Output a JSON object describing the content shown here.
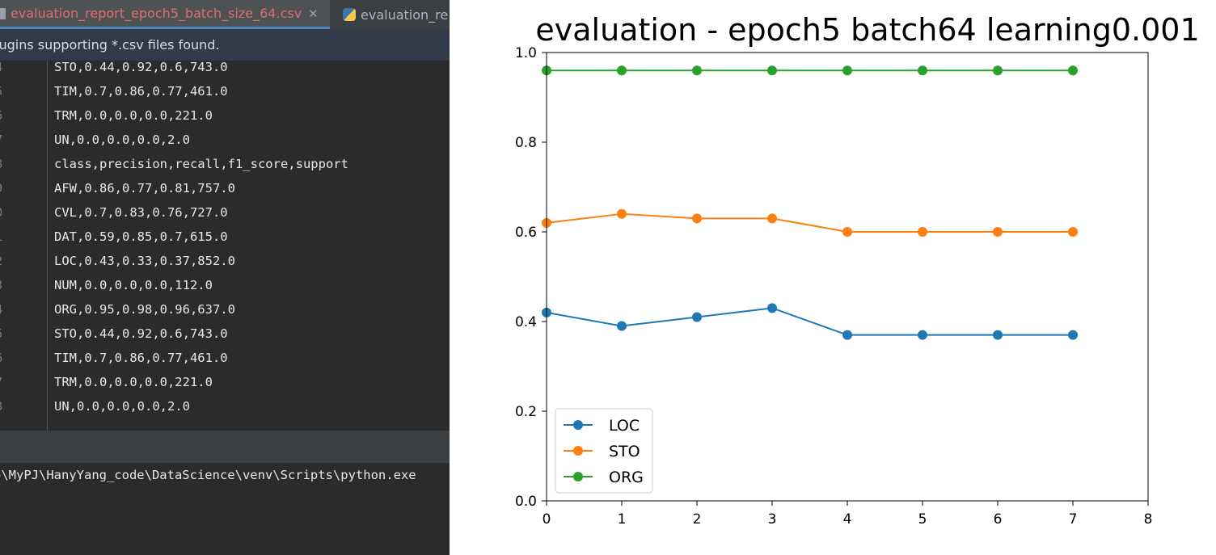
{
  "ide": {
    "tabs": [
      {
        "label": "evaluation_report_epoch5_batch_size_64.csv",
        "active": true,
        "icon": "csv-file-icon"
      },
      {
        "label": "evaluation_re",
        "active": false,
        "icon": "python-file-icon"
      }
    ],
    "notification": "lugins supporting *.csv files found.",
    "code_lines": [
      {
        "ln": "4",
        "text": "STO,0.44,0.92,0.6,743.0"
      },
      {
        "ln": "5",
        "text": "TIM,0.7,0.86,0.77,461.0"
      },
      {
        "ln": "6",
        "text": "TRM,0.0,0.0,0.0,221.0"
      },
      {
        "ln": "7",
        "text": "UN,0.0,0.0,0.0,2.0"
      },
      {
        "ln": "8",
        "text": "class,precision,recall,f1_score,support"
      },
      {
        "ln": "9",
        "text": "AFW,0.86,0.77,0.81,757.0"
      },
      {
        "ln": "0",
        "text": "CVL,0.7,0.83,0.76,727.0"
      },
      {
        "ln": "1",
        "text": "DAT,0.59,0.85,0.7,615.0"
      },
      {
        "ln": "2",
        "text": "LOC,0.43,0.33,0.37,852.0"
      },
      {
        "ln": "3",
        "text": "NUM,0.0,0.0,0.0,112.0"
      },
      {
        "ln": "4",
        "text": "ORG,0.95,0.98,0.96,637.0"
      },
      {
        "ln": "5",
        "text": "STO,0.44,0.92,0.6,743.0"
      },
      {
        "ln": "6",
        "text": "TIM,0.7,0.86,0.77,461.0"
      },
      {
        "ln": "7",
        "text": "TRM,0.0,0.0,0.0,221.0"
      },
      {
        "ln": "8",
        "text": "UN,0.0,0.0,0.0,2.0"
      }
    ],
    "console_text": "o\\MyPJ\\HanyYang_code\\DataScience\\venv\\Scripts\\python.exe"
  },
  "chart_data": {
    "type": "line",
    "title": "evaluation - epoch5 batch64 learning0.001",
    "xlabel": "",
    "ylabel": "",
    "xlim": [
      0,
      8
    ],
    "ylim": [
      0.0,
      1.0
    ],
    "xticks": [
      "0",
      "1",
      "2",
      "3",
      "4",
      "5",
      "6",
      "7",
      "8"
    ],
    "yticks": [
      "0.0",
      "0.2",
      "0.4",
      "0.6",
      "0.8",
      "1.0"
    ],
    "x": [
      0,
      1,
      2,
      3,
      4,
      5,
      6,
      7
    ],
    "grid": false,
    "legend_position": "lower-left",
    "series": [
      {
        "name": "LOC",
        "color": "#1f77b4",
        "values": [
          0.42,
          0.39,
          0.41,
          0.43,
          0.37,
          0.37,
          0.37,
          0.37
        ]
      },
      {
        "name": "STO",
        "color": "#ff7f0e",
        "values": [
          0.62,
          0.64,
          0.63,
          0.63,
          0.6,
          0.6,
          0.6,
          0.6
        ]
      },
      {
        "name": "ORG",
        "color": "#2ca02c",
        "values": [
          0.96,
          0.96,
          0.96,
          0.96,
          0.96,
          0.96,
          0.96,
          0.96
        ]
      }
    ]
  }
}
